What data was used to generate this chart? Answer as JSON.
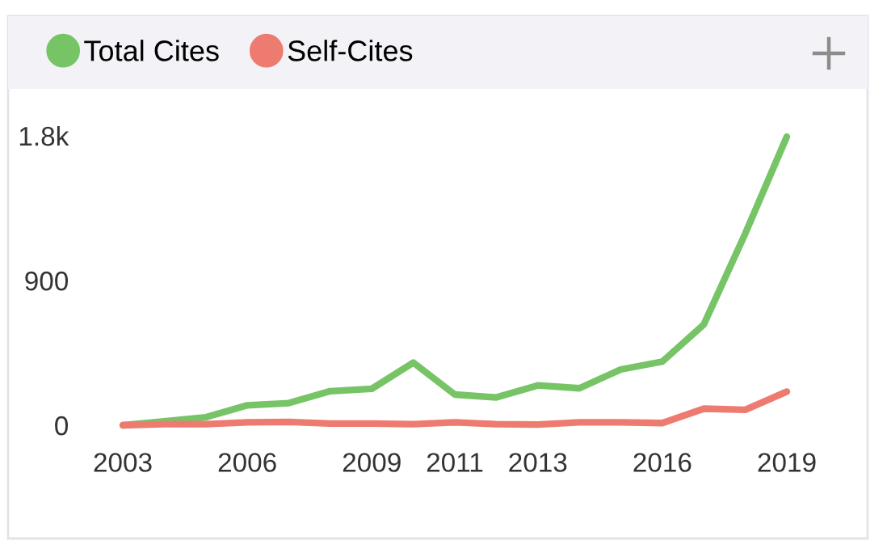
{
  "chart_data": {
    "type": "line",
    "x": [
      2003,
      2004,
      2005,
      2006,
      2007,
      2008,
      2009,
      2010,
      2011,
      2012,
      2013,
      2014,
      2015,
      2016,
      2017,
      2018,
      2019
    ],
    "series": [
      {
        "name": "Total Cites",
        "color": "#77c466",
        "values": [
          0,
          25,
          50,
          124,
          138,
          212,
          227,
          390,
          191,
          173,
          248,
          230,
          347,
          396,
          627,
          1193,
          1795
        ]
      },
      {
        "name": "Self-Cites",
        "color": "#ee7b70",
        "values": [
          0,
          7,
          7,
          18,
          21,
          11,
          11,
          7,
          18,
          7,
          4,
          18,
          18,
          14,
          103,
          96,
          209
        ]
      }
    ],
    "xlim": [
      2003,
      2019
    ],
    "xticks": [
      2003,
      2006,
      2009,
      2011,
      2013,
      2016,
      2019
    ],
    "ylim": [
      0,
      1800
    ],
    "yticks": [
      0,
      900,
      {
        "value": 1800,
        "label": "1.8k"
      }
    ],
    "grid": false,
    "legend": "top left",
    "marker": "none",
    "line_style": "solid"
  }
}
